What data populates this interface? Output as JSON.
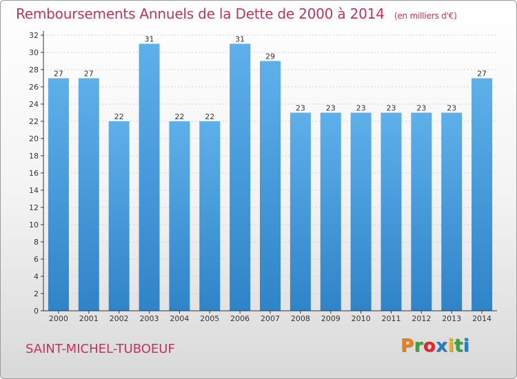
{
  "header": {
    "title": "Remboursements Annuels de la Dette de 2000 à 2014",
    "unit": "(en milliers d'€)"
  },
  "footer": {
    "commune": "SAINT-MICHEL-TUBOEUF",
    "logo_letters": [
      "P",
      "r",
      "o",
      "x",
      "i",
      "t",
      "i"
    ],
    "logo_colors": [
      "#f07c12",
      "#3aa537",
      "#e5252a",
      "#1e7fc6",
      "#f0b30f",
      "#3aa537",
      "#1e7fc6"
    ]
  },
  "colors": {
    "bar_top": "#5eb0ea",
    "bar_bottom": "#2f84c8",
    "title": "#c2345b",
    "axis": "#333333",
    "grid": "#d0d0d0"
  },
  "chart_data": {
    "type": "bar",
    "title": "Remboursements Annuels de la Dette de 2000 à 2014",
    "subtitle": "(en milliers d'€)",
    "categories": [
      "2000",
      "2001",
      "2002",
      "2003",
      "2004",
      "2005",
      "2006",
      "2007",
      "2008",
      "2009",
      "2010",
      "2011",
      "2012",
      "2013",
      "2014"
    ],
    "values": [
      27,
      27,
      22,
      31,
      22,
      22,
      31,
      29,
      23,
      23,
      23,
      23,
      23,
      23,
      27
    ],
    "ylim": [
      0,
      32
    ],
    "yticks": [
      0,
      2,
      4,
      6,
      8,
      10,
      12,
      14,
      16,
      18,
      20,
      22,
      24,
      26,
      28,
      30,
      32
    ],
    "grid": true,
    "xlabel": "",
    "ylabel": ""
  }
}
